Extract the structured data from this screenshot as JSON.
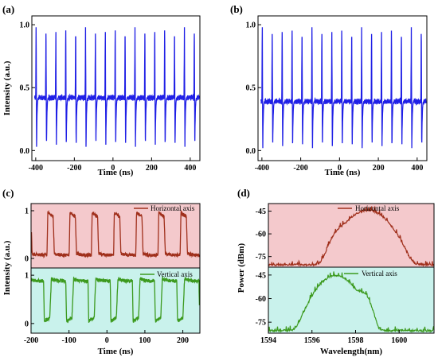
{
  "colors": {
    "trace_ab": "#1f1fe6",
    "horizontal": "#a0301c",
    "vertical": "#3c9a1e",
    "horizontal_bg": "#f4c9cc",
    "vertical_bg": "#c9f2ec"
  },
  "chart_data": [
    {
      "panel": "(a)",
      "type": "line",
      "xlabel": "Time (ns)",
      "ylabel": "Intensity (a.u.)",
      "xlim": [
        -420,
        450
      ],
      "ylim": [
        -0.08,
        1.07
      ],
      "xticks": [
        -400,
        -200,
        0,
        200,
        400
      ],
      "yticks": [
        0.0,
        0.5,
        1.0
      ],
      "ytick_labels": [
        "0.0",
        "0.5",
        "1.0"
      ],
      "series": [
        {
          "waveform": "spike",
          "period_ns": 51.2,
          "first_peak_ns": -398,
          "baseline": 0.42,
          "peak": 0.98,
          "trough": 0.03
        }
      ]
    },
    {
      "panel": "(b)",
      "type": "line",
      "xlabel": "Time (ns)",
      "ylabel": "",
      "xlim": [
        -420,
        450
      ],
      "ylim": [
        -0.08,
        1.07
      ],
      "xticks": [
        -400,
        -200,
        0,
        200,
        400
      ],
      "yticks": [
        0.0,
        0.5,
        1.0
      ],
      "ytick_labels": [
        "0.0",
        "0.5",
        "1.0"
      ],
      "series": [
        {
          "waveform": "spike",
          "period_ns": 51.2,
          "first_peak_ns": -398,
          "baseline": 0.39,
          "peak": 0.98,
          "trough": 0.02
        }
      ]
    },
    {
      "panel": "(c)",
      "type": "line",
      "xlabel": "Time (ns)",
      "ylabel": "Intensity (a.u.)",
      "xlim": [
        -200,
        245
      ],
      "xticks": [
        -200,
        -100,
        0,
        100,
        200
      ],
      "subplots": [
        {
          "name": "Horizontal axis",
          "ylim": [
            -0.2,
            1.15
          ],
          "yticks": [
            0,
            1
          ],
          "waveform": "square-high",
          "period_ns": 58.5,
          "first_rise_ns": -158,
          "high": 0.96,
          "low": 0.07,
          "duty": 0.28
        },
        {
          "name": "Vertical axis",
          "ylim": [
            -0.2,
            1.15
          ],
          "yticks": [
            0,
            1
          ],
          "waveform": "square-low",
          "period_ns": 58.5,
          "first_drop_ns": -167,
          "high": 0.9,
          "low": 0.05,
          "duty": 0.28
        }
      ]
    },
    {
      "panel": "(d)",
      "type": "line",
      "xlabel": "Wavelength(nm)",
      "ylabel": "Power (dBm)",
      "xlim": [
        1594,
        1601.6
      ],
      "xticks": [
        1594,
        1596,
        1598,
        1600
      ],
      "subplots": [
        {
          "name": "Horizontal axis",
          "ylim": [
            -82,
            -40
          ],
          "yticks": [
            -45,
            -60,
            -75
          ],
          "noise_floor": -81,
          "peaks": [
            {
              "center_nm": 1597.3,
              "level_dBm": -60,
              "width_nm": 0.25
            },
            {
              "center_nm": 1598.55,
              "level_dBm": -45,
              "width_nm": 0.5
            }
          ]
        },
        {
          "name": "Vertical axis",
          "ylim": [
            -82,
            -40
          ],
          "yticks": [
            -45,
            -60,
            -75
          ],
          "noise_floor": -81,
          "peaks": [
            {
              "center_nm": 1597.1,
              "level_dBm": -46,
              "width_nm": 0.45
            },
            {
              "center_nm": 1598.35,
              "level_dBm": -58,
              "width_nm": 0.2
            }
          ]
        }
      ]
    }
  ]
}
